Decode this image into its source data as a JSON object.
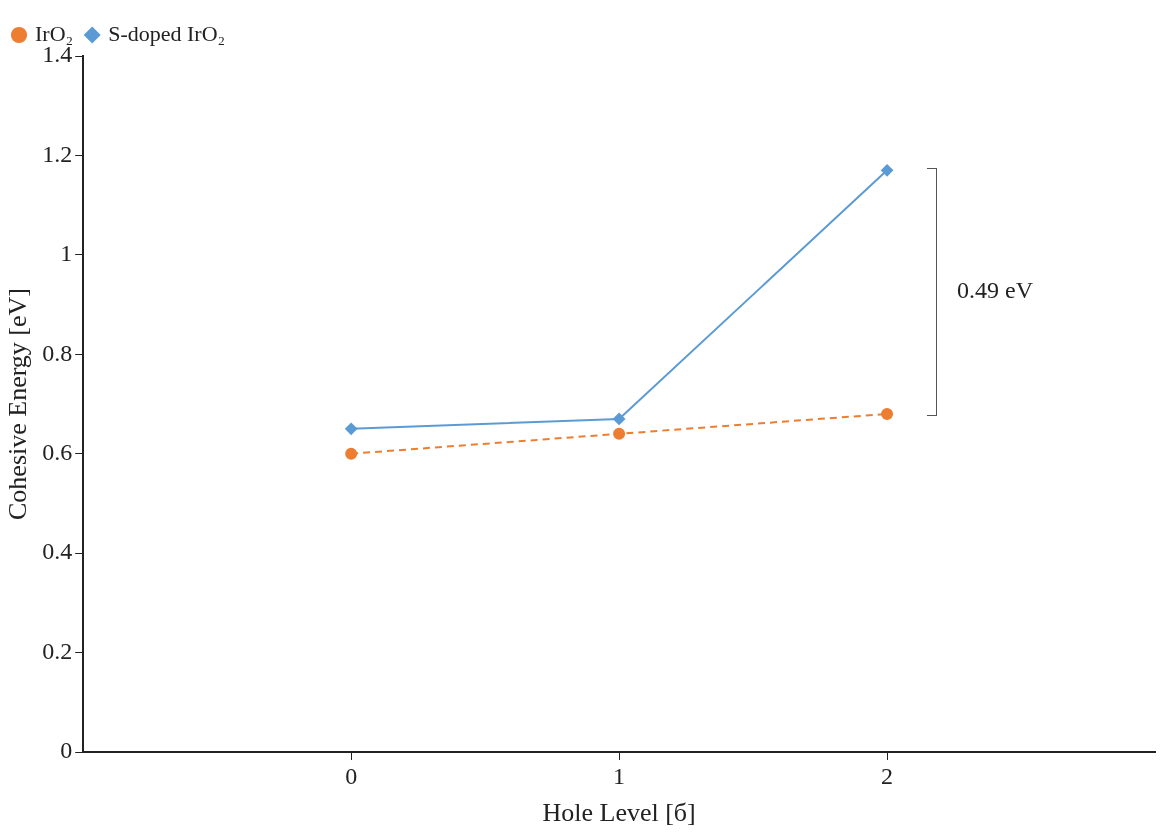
{
  "chart_data": {
    "type": "line",
    "xlabel": "Hole Level [б]",
    "ylabel": "Cohesive Energy [eV]",
    "x": [
      0,
      1,
      2
    ],
    "xlim": [
      -1,
      3
    ],
    "xticks": [
      0,
      1,
      2
    ],
    "ylim": [
      0,
      1.4
    ],
    "yticks": [
      0,
      0.2,
      0.4,
      0.6,
      0.8,
      1,
      1.2,
      1.4
    ],
    "series": [
      {
        "name": "IrO₂",
        "color": "#ed7d31",
        "values": [
          0.6,
          0.64,
          0.68
        ],
        "marker": "circle",
        "line_style": "dashed"
      },
      {
        "name": "S-doped IrO₂",
        "color": "#5b9bd5",
        "values": [
          0.65,
          0.67,
          1.17
        ],
        "marker": "diamond",
        "line_style": "solid"
      }
    ],
    "annotations": [
      "0.49 eV"
    ],
    "grid": false,
    "legend": "top left"
  }
}
